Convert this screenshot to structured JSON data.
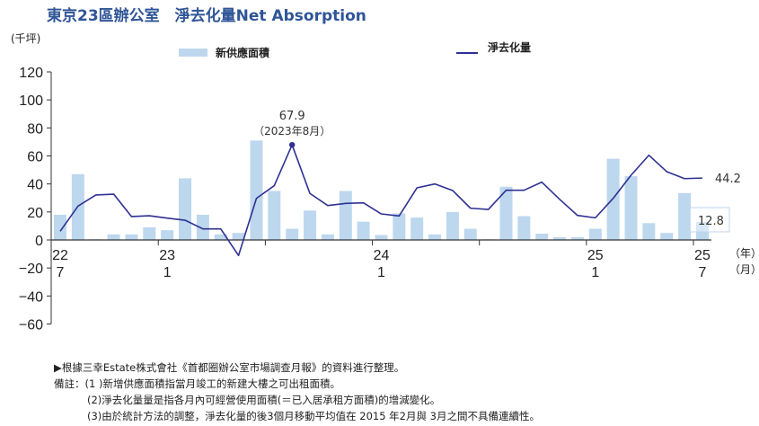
{
  "title": "東京23區辦公室　淨去化量Net Absorption",
  "chart_data": {
    "type": "bar+line",
    "ylabel": "(千坪)",
    "ylim": [
      -60,
      120
    ],
    "yticks": [
      120,
      100,
      80,
      60,
      40,
      20,
      0,
      -20,
      -40,
      -60
    ],
    "grid": false,
    "legend_placement": "top",
    "x": [
      "2022-07",
      "2022-08",
      "2022-09",
      "2022-10",
      "2022-11",
      "2022-12",
      "2023-01",
      "2023-02",
      "2023-03",
      "2023-04",
      "2023-05",
      "2023-06",
      "2023-07",
      "2023-08",
      "2023-09",
      "2023-10",
      "2023-11",
      "2023-12",
      "2024-01",
      "2024-02",
      "2024-03",
      "2024-04",
      "2024-05",
      "2024-06",
      "2024-07",
      "2024-08",
      "2024-09",
      "2024-10",
      "2024-11",
      "2024-12",
      "2025-01",
      "2025-02",
      "2025-03",
      "2025-04",
      "2025-05",
      "2025-06",
      "2025-07"
    ],
    "xtick_labels": [
      {
        "index": 0,
        "year": "22",
        "month": "7"
      },
      {
        "index": 6,
        "year": "23",
        "month": "1"
      },
      {
        "index": 18,
        "year": "24",
        "month": "1"
      },
      {
        "index": 30,
        "year": "25",
        "month": "1"
      },
      {
        "index": 36,
        "year": "25",
        "month": "7"
      }
    ],
    "x_unit_year": "（年）",
    "x_unit_month": "（月）",
    "series": [
      {
        "name": "新供應面積",
        "type": "bar",
        "color": "#bdd7ee",
        "values": [
          18,
          47,
          0.5,
          4,
          4,
          9,
          7,
          44,
          18,
          4,
          5,
          71,
          35,
          8,
          21,
          4,
          35,
          13,
          3.5,
          19,
          16,
          4,
          20,
          8,
          0.5,
          38,
          17,
          4.5,
          2,
          2,
          8,
          58,
          45.5,
          12,
          5,
          33.5,
          12.8
        ]
      },
      {
        "name": "淨去化量",
        "type": "line",
        "color": "#2e3192",
        "values": [
          6.2,
          24.2,
          32.1,
          32.7,
          16.7,
          17.3,
          15.6,
          14.1,
          7.9,
          7.9,
          -11.1,
          29.7,
          38.8,
          67.9,
          33.2,
          24.6,
          26.1,
          26.5,
          18.6,
          17.1,
          37.2,
          40.0,
          35.3,
          22.7,
          21.8,
          35.5,
          35.5,
          41.3,
          29.0,
          17.5,
          15.8,
          29.7,
          46.2,
          60.5,
          48.8,
          43.8,
          44.2
        ]
      }
    ],
    "annotations": {
      "peak_value": "67.9",
      "peak_label": "（2023年8月）",
      "last_line_value": "44.2",
      "last_bar_value": "12.8"
    }
  },
  "notes": [
    "▶根據三幸Estate株式會社《首都圈辦公室市場調查月報》的資料進行整理。",
    "備註：(1 )新增供應面積指當月竣工的新建大樓之可出租面積。",
    "(2)淨去化量量是指各月內可經營使用面積(＝已入居承租方面積)的增減變化。",
    "(3)由於統計方法的調整，淨去化量的後3個月移動平均值在 2015 年2月與 3月之間不具備連續性。"
  ]
}
